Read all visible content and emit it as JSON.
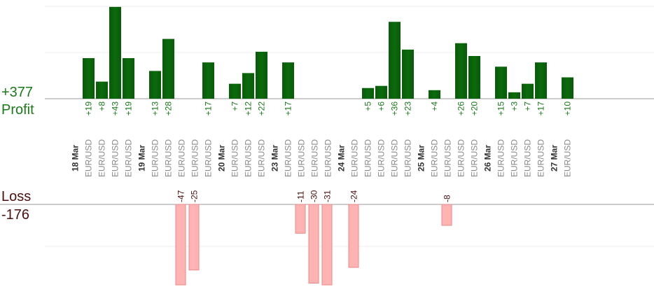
{
  "summary": {
    "profit_total": "+377",
    "profit_label": "Profit",
    "loss_label": "Loss",
    "loss_total": "-176"
  },
  "colors": {
    "profit_bar": "#0b6b0b",
    "profit_text": "#1a7a1a",
    "loss_bar": "#ffb3b3",
    "loss_text": "#4a0f0f",
    "axis_text": "#8a8a8a",
    "date_text": "#333333"
  },
  "chart_data": {
    "type": "bar",
    "title": "",
    "profit_scale_max": 50,
    "loss_scale_max": 40,
    "groups": [
      {
        "date": "18 Mar",
        "trades": [
          {
            "pair": "EUR/USD",
            "result": 19
          },
          {
            "pair": "EUR/USD",
            "result": 8
          },
          {
            "pair": "EUR/USD",
            "result": 43
          },
          {
            "pair": "EUR/USD",
            "result": 19
          }
        ]
      },
      {
        "date": "19 Mar",
        "trades": [
          {
            "pair": "EUR/USD",
            "result": 13
          },
          {
            "pair": "EUR/USD",
            "result": 28
          },
          {
            "pair": "EUR/USD",
            "result": -47
          },
          {
            "pair": "EUR/USD",
            "result": -25
          },
          {
            "pair": "EUR/USD",
            "result": 17
          }
        ]
      },
      {
        "date": "20 Mar",
        "trades": [
          {
            "pair": "EUR/USD",
            "result": 7
          },
          {
            "pair": "EUR/USD",
            "result": 12
          },
          {
            "pair": "EUR/USD",
            "result": 22
          }
        ]
      },
      {
        "date": "23 Mar",
        "trades": [
          {
            "pair": "EUR/USD",
            "result": 17
          },
          {
            "pair": "EUR/USD",
            "result": -11
          },
          {
            "pair": "EUR/USD",
            "result": -30
          },
          {
            "pair": "EUR/USD",
            "result": -31
          }
        ]
      },
      {
        "date": "24 Mar",
        "trades": [
          {
            "pair": "EUR/USD",
            "result": -24
          },
          {
            "pair": "EUR/USD",
            "result": 5
          },
          {
            "pair": "EUR/USD",
            "result": 6
          },
          {
            "pair": "EUR/USD",
            "result": 36
          },
          {
            "pair": "EUR/USD",
            "result": 23
          }
        ]
      },
      {
        "date": "25 Mar",
        "trades": [
          {
            "pair": "EUR/USD",
            "result": 4
          },
          {
            "pair": "EUR/USD",
            "result": -8
          },
          {
            "pair": "EUR/USD",
            "result": 26
          },
          {
            "pair": "EUR/USD",
            "result": 20
          }
        ]
      },
      {
        "date": "26 Mar",
        "trades": [
          {
            "pair": "EUR/USD",
            "result": 15
          },
          {
            "pair": "EUR/USD",
            "result": 3
          },
          {
            "pair": "EUR/USD",
            "result": 7
          },
          {
            "pair": "EUR/USD",
            "result": 17
          }
        ]
      },
      {
        "date": "27 Mar",
        "trades": [
          {
            "pair": "EUR/USD",
            "result": 10
          }
        ]
      }
    ]
  }
}
